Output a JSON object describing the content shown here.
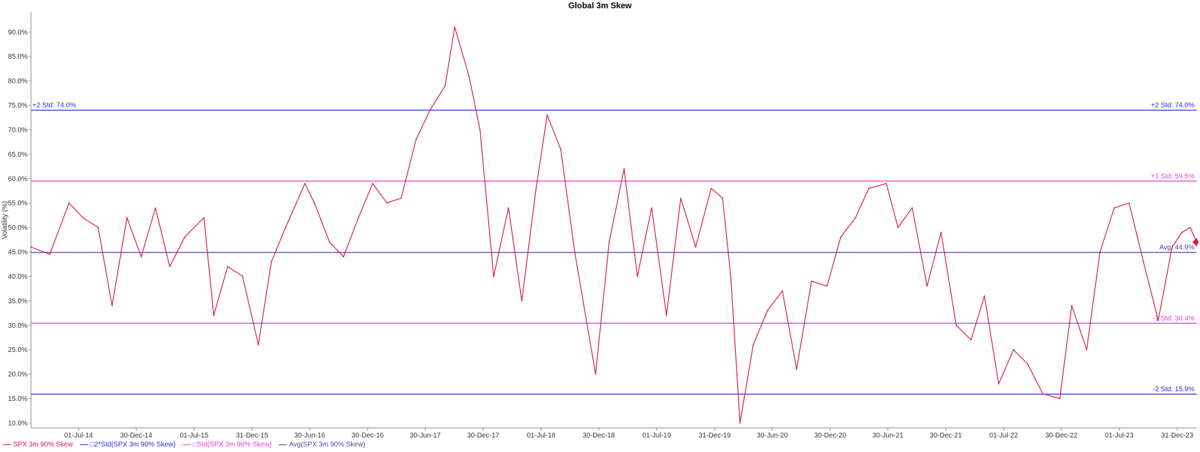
{
  "chart_data": {
    "type": "line",
    "title": "Global 3m Skew",
    "ylabel": "Volatility (%)",
    "ylim": [
      9.0,
      94.0
    ],
    "y_ticks": [
      "10.0%",
      "15.0%",
      "20.0%",
      "25.0%",
      "30.0%",
      "35.0%",
      "40.0%",
      "45.0%",
      "50.0%",
      "55.0%",
      "60.0%",
      "65.0%",
      "70.0%",
      "75.0%",
      "80.0%",
      "85.0%",
      "90.0%"
    ],
    "y_tick_values": [
      10,
      15,
      20,
      25,
      30,
      35,
      40,
      45,
      50,
      55,
      60,
      65,
      70,
      75,
      80,
      85,
      90
    ],
    "x_range": [
      "2014-02-01",
      "2024-03-01"
    ],
    "x_ticks": [
      {
        "date": "2014-07-01",
        "label": "01-Jul-14"
      },
      {
        "date": "2014-12-30",
        "label": "30-Dec-14"
      },
      {
        "date": "2015-07-01",
        "label": "01-Jul-15"
      },
      {
        "date": "2015-12-31",
        "label": "31-Dec-15"
      },
      {
        "date": "2016-06-30",
        "label": "30-Jun-16"
      },
      {
        "date": "2016-12-30",
        "label": "30-Dec-16"
      },
      {
        "date": "2017-06-30",
        "label": "30-Jun-17"
      },
      {
        "date": "2017-12-30",
        "label": "30-Dec-17"
      },
      {
        "date": "2018-07-01",
        "label": "01-Jul-18"
      },
      {
        "date": "2018-12-30",
        "label": "30-Dec-18"
      },
      {
        "date": "2019-07-01",
        "label": "01-Jul-19"
      },
      {
        "date": "2019-12-31",
        "label": "31-Dec-19"
      },
      {
        "date": "2020-06-30",
        "label": "30-Jun-20"
      },
      {
        "date": "2020-12-30",
        "label": "30-Dec-20"
      },
      {
        "date": "2021-06-30",
        "label": "30-Jun-21"
      },
      {
        "date": "2021-12-30",
        "label": "30-Dec-21"
      },
      {
        "date": "2022-07-01",
        "label": "01-Jul-22"
      },
      {
        "date": "2022-12-30",
        "label": "30-Dec-22"
      },
      {
        "date": "2023-07-01",
        "label": "01-Jul-23"
      },
      {
        "date": "2023-12-31",
        "label": "31-Dec-23"
      }
    ],
    "reference_lines": [
      {
        "name": "plus2",
        "value": 74.0,
        "color": "#2a2adf",
        "label": "+2 Std: 74.0%",
        "label_left": true
      },
      {
        "name": "plus1",
        "value": 59.5,
        "color": "#e83ad6",
        "label": "+1 Std: 59.5%",
        "label_left": false
      },
      {
        "name": "avg",
        "value": 44.9,
        "color": "#5b3aa8",
        "label": "Avg: 44.9%",
        "label_left": false
      },
      {
        "name": "minus1",
        "value": 30.4,
        "color": "#e83ad6",
        "label": "-1 Std: 30.4%",
        "label_left": false
      },
      {
        "name": "minus2",
        "value": 15.9,
        "color": "#2a2adf",
        "label": "-2 Std: 15.9%",
        "label_left": false
      }
    ],
    "series": [
      {
        "name": "SPX 3m 90% Skew",
        "color": "#d81b3c",
        "x": [
          "2014-02-01",
          "2014-04-01",
          "2014-06-01",
          "2014-07-15",
          "2014-09-01",
          "2014-10-15",
          "2014-12-01",
          "2015-01-15",
          "2015-03-01",
          "2015-04-15",
          "2015-06-01",
          "2015-08-01",
          "2015-09-01",
          "2015-10-15",
          "2015-12-01",
          "2016-01-20",
          "2016-03-01",
          "2016-04-15",
          "2016-06-15",
          "2016-07-15",
          "2016-09-01",
          "2016-10-15",
          "2016-12-01",
          "2017-01-15",
          "2017-03-01",
          "2017-04-15",
          "2017-06-01",
          "2017-07-15",
          "2017-09-01",
          "2017-10-01",
          "2017-11-15",
          "2017-12-20",
          "2018-02-01",
          "2018-03-20",
          "2018-05-01",
          "2018-06-15",
          "2018-07-20",
          "2018-09-01",
          "2018-10-15",
          "2018-12-20",
          "2019-02-01",
          "2019-03-20",
          "2019-05-01",
          "2019-06-15",
          "2019-08-01",
          "2019-09-15",
          "2019-11-01",
          "2019-12-20",
          "2020-01-25",
          "2020-02-20",
          "2020-03-20",
          "2020-05-01",
          "2020-06-15",
          "2020-08-01",
          "2020-09-15",
          "2020-11-01",
          "2020-12-20",
          "2021-02-01",
          "2021-03-20",
          "2021-05-01",
          "2021-06-25",
          "2021-08-01",
          "2021-09-15",
          "2021-11-01",
          "2021-12-15",
          "2022-02-01",
          "2022-03-20",
          "2022-05-01",
          "2022-06-15",
          "2022-08-01",
          "2022-09-15",
          "2022-11-01",
          "2022-12-25",
          "2023-02-01",
          "2023-03-20",
          "2023-05-01",
          "2023-06-15",
          "2023-08-01",
          "2023-09-15",
          "2023-11-01",
          "2023-12-15",
          "2024-01-15",
          "2024-02-10",
          "2024-03-01"
        ],
        "values": [
          46.0,
          44.5,
          55.0,
          52.0,
          50.0,
          34.0,
          52.0,
          44.0,
          54.0,
          42.0,
          48.0,
          52.0,
          32.0,
          42.0,
          40.0,
          26.0,
          43.0,
          50.0,
          59.0,
          55.0,
          47.0,
          44.0,
          52.0,
          59.0,
          55.0,
          56.0,
          68.0,
          74.0,
          79.0,
          91.0,
          81.0,
          70.0,
          40.0,
          54.0,
          35.0,
          58.0,
          73.0,
          66.0,
          45.0,
          20.0,
          47.0,
          62.0,
          40.0,
          54.0,
          32.0,
          56.0,
          46.0,
          58.0,
          56.0,
          40.0,
          10.0,
          26.0,
          33.0,
          37.0,
          21.0,
          39.0,
          38.0,
          48.0,
          52.0,
          58.0,
          59.0,
          50.0,
          54.0,
          38.0,
          49.0,
          30.0,
          27.0,
          36.0,
          18.0,
          25.0,
          22.0,
          16.0,
          15.0,
          34.0,
          25.0,
          45.0,
          54.0,
          55.0,
          43.0,
          31.0,
          46.0,
          49.0,
          50.0,
          47.0
        ]
      }
    ],
    "end_marker_value": 47.0,
    "legend": [
      {
        "label": "SPX 3m 90% Skew",
        "color": "#d81b3c"
      },
      {
        "label": "□2*Std(SPX 3m 90% Skew)",
        "color": "#2a2adf"
      },
      {
        "label": "□Std(SPX 3m 90% Skew)",
        "color": "#e83ad6"
      },
      {
        "label": "Avg(SPX 3m 90% Skew)",
        "color": "#5b3aa8"
      }
    ],
    "legend_position": "bottom-left",
    "grid": false
  }
}
